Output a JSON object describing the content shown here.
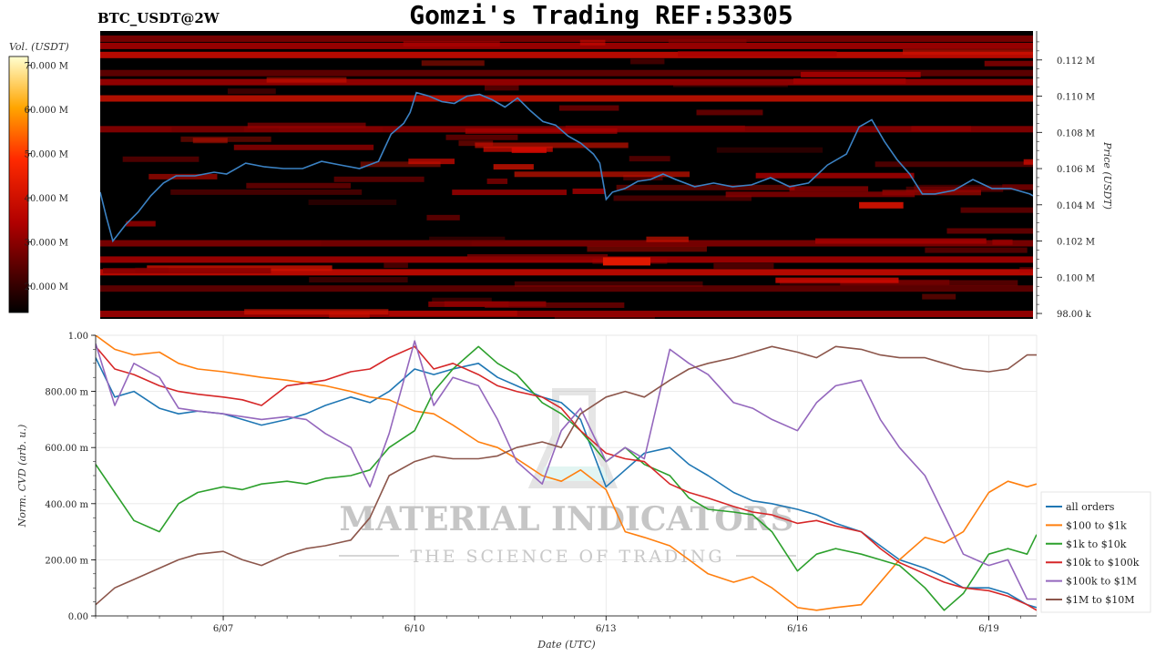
{
  "header": {
    "title": "Gomzi's Trading REF:53305",
    "pair": "BTC_USDT@2W"
  },
  "colors": {
    "all orders": "#1f77b4",
    "$100 to $1k": "#ff7f0e",
    "$1k to $10k": "#2ca02c",
    "$10k to $100k": "#d62728",
    "$100k to $1M": "#9467bd",
    "$1M to $10M": "#8c564b",
    "price_line": "#3b82c4",
    "heatmap_bg": "#000000"
  },
  "watermark": {
    "brand": "MATERIAL INDICATORS",
    "tagline": "THE SCIENCE OF TRADING"
  },
  "chart_data": [
    {
      "type": "heatmap",
      "colorbar": {
        "label": "Vol. (USDT)",
        "ticks": [
          "70.000 M",
          "60.000 M",
          "50.000 M",
          "40.000 M",
          "30.000 M",
          "20.000 M"
        ],
        "tick_values": [
          70,
          60,
          50,
          40,
          30,
          20
        ],
        "range": [
          14,
          72
        ],
        "colormap": "hot"
      },
      "y_axis": {
        "label": "Price (USDT)",
        "ticks": [
          "0.112 M",
          "0.110 M",
          "0.108 M",
          "0.106 M",
          "0.104 M",
          "0.102 M",
          "0.100 M",
          "98.00 k"
        ],
        "tick_values": [
          112000,
          110000,
          108000,
          106000,
          104000,
          102000,
          100000,
          98000
        ],
        "range": [
          97700,
          113600
        ],
        "position": "right"
      },
      "x_range_days": [
        5.0,
        19.75
      ],
      "price_series": {
        "x": [
          5.0,
          5.1,
          5.2,
          5.4,
          5.6,
          5.8,
          6.0,
          6.2,
          6.5,
          6.8,
          7.0,
          7.3,
          7.6,
          7.9,
          8.2,
          8.5,
          8.8,
          9.1,
          9.4,
          9.6,
          9.8,
          9.9,
          10.0,
          10.2,
          10.4,
          10.6,
          10.8,
          11.0,
          11.2,
          11.4,
          11.6,
          11.8,
          12.0,
          12.2,
          12.4,
          12.6,
          12.8,
          12.9,
          13.0,
          13.1,
          13.3,
          13.5,
          13.7,
          13.9,
          14.1,
          14.4,
          14.7,
          15.0,
          15.3,
          15.6,
          15.9,
          16.2,
          16.5,
          16.8,
          17.0,
          17.2,
          17.4,
          17.6,
          17.8,
          18.0,
          18.2,
          18.5,
          18.8,
          19.1,
          19.4,
          19.7,
          19.75
        ],
        "y": [
          104700,
          103300,
          102000,
          102900,
          103600,
          104500,
          105200,
          105600,
          105600,
          105800,
          105700,
          106300,
          106100,
          106000,
          106000,
          106400,
          106200,
          106000,
          106400,
          107900,
          108500,
          109100,
          110200,
          110000,
          109700,
          109600,
          110000,
          110100,
          109800,
          109400,
          109900,
          109200,
          108600,
          108400,
          107800,
          107400,
          106800,
          106300,
          104300,
          104700,
          104900,
          105300,
          105400,
          105700,
          105400,
          105000,
          105200,
          105000,
          105100,
          105500,
          105000,
          105200,
          106200,
          106800,
          108300,
          108700,
          107500,
          106500,
          105700,
          104600,
          104600,
          104800,
          105400,
          104900,
          104900,
          104600,
          104500
        ]
      }
    },
    {
      "type": "line",
      "ylabel": "Norm. CVD (arb. u.)",
      "xlabel": "Date (UTC)",
      "ylim": [
        0,
        1
      ],
      "y_ticks": [
        "0.00",
        "200.00 m",
        "400.00 m",
        "600.00 m",
        "800.00 m",
        "1.00"
      ],
      "y_tick_values": [
        0,
        0.2,
        0.4,
        0.6,
        0.8,
        1.0
      ],
      "x_ticks": [
        "6/07",
        "6/10",
        "6/13",
        "6/16",
        "6/19"
      ],
      "x_tick_values": [
        7,
        10,
        13,
        16,
        19
      ],
      "x_range": [
        5.0,
        19.75
      ],
      "grid": true,
      "legend_position": "right",
      "x": [
        5.0,
        5.3,
        5.6,
        6.0,
        6.3,
        6.6,
        7.0,
        7.3,
        7.6,
        8.0,
        8.3,
        8.6,
        9.0,
        9.3,
        9.6,
        10.0,
        10.3,
        10.6,
        11.0,
        11.3,
        11.6,
        12.0,
        12.3,
        12.6,
        13.0,
        13.3,
        13.6,
        14.0,
        14.3,
        14.6,
        15.0,
        15.3,
        15.6,
        16.0,
        16.3,
        16.6,
        17.0,
        17.3,
        17.6,
        18.0,
        18.3,
        18.6,
        19.0,
        19.3,
        19.6,
        19.75
      ],
      "series": [
        {
          "name": "all orders",
          "values": [
            0.92,
            0.78,
            0.8,
            0.74,
            0.72,
            0.73,
            0.72,
            0.7,
            0.68,
            0.7,
            0.72,
            0.75,
            0.78,
            0.76,
            0.8,
            0.88,
            0.86,
            0.88,
            0.9,
            0.85,
            0.82,
            0.78,
            0.76,
            0.7,
            0.46,
            0.52,
            0.58,
            0.6,
            0.54,
            0.5,
            0.44,
            0.41,
            0.4,
            0.38,
            0.36,
            0.33,
            0.3,
            0.25,
            0.2,
            0.17,
            0.14,
            0.1,
            0.1,
            0.08,
            0.04,
            0.03
          ]
        },
        {
          "name": "$100 to $1k",
          "values": [
            1.0,
            0.95,
            0.93,
            0.94,
            0.9,
            0.88,
            0.87,
            0.86,
            0.85,
            0.84,
            0.83,
            0.82,
            0.8,
            0.78,
            0.77,
            0.73,
            0.72,
            0.68,
            0.62,
            0.6,
            0.56,
            0.5,
            0.48,
            0.52,
            0.45,
            0.3,
            0.28,
            0.25,
            0.2,
            0.15,
            0.12,
            0.14,
            0.1,
            0.03,
            0.02,
            0.03,
            0.04,
            0.12,
            0.2,
            0.28,
            0.26,
            0.3,
            0.44,
            0.48,
            0.46,
            0.47
          ]
        },
        {
          "name": "$1k to $10k",
          "values": [
            0.54,
            0.44,
            0.34,
            0.3,
            0.4,
            0.44,
            0.46,
            0.45,
            0.47,
            0.48,
            0.47,
            0.49,
            0.5,
            0.52,
            0.6,
            0.66,
            0.8,
            0.88,
            0.96,
            0.9,
            0.86,
            0.76,
            0.72,
            0.66,
            0.55,
            0.6,
            0.54,
            0.5,
            0.42,
            0.38,
            0.37,
            0.36,
            0.3,
            0.16,
            0.22,
            0.24,
            0.22,
            0.2,
            0.18,
            0.1,
            0.02,
            0.08,
            0.22,
            0.24,
            0.22,
            0.29
          ]
        },
        {
          "name": "$10k to $100k",
          "values": [
            0.96,
            0.88,
            0.86,
            0.82,
            0.8,
            0.79,
            0.78,
            0.77,
            0.75,
            0.82,
            0.83,
            0.84,
            0.87,
            0.88,
            0.92,
            0.96,
            0.88,
            0.9,
            0.86,
            0.82,
            0.8,
            0.78,
            0.74,
            0.66,
            0.58,
            0.56,
            0.55,
            0.47,
            0.44,
            0.42,
            0.39,
            0.37,
            0.36,
            0.33,
            0.34,
            0.32,
            0.3,
            0.24,
            0.19,
            0.15,
            0.12,
            0.1,
            0.09,
            0.07,
            0.04,
            0.02
          ]
        },
        {
          "name": "$100k to $1M",
          "values": [
            0.97,
            0.75,
            0.9,
            0.85,
            0.74,
            0.73,
            0.72,
            0.71,
            0.7,
            0.71,
            0.7,
            0.65,
            0.6,
            0.46,
            0.65,
            0.98,
            0.75,
            0.85,
            0.82,
            0.7,
            0.55,
            0.47,
            0.66,
            0.74,
            0.55,
            0.6,
            0.56,
            0.95,
            0.9,
            0.86,
            0.76,
            0.74,
            0.7,
            0.66,
            0.76,
            0.82,
            0.84,
            0.7,
            0.6,
            0.5,
            0.36,
            0.22,
            0.18,
            0.2,
            0.06,
            0.06
          ]
        },
        {
          "name": "$1M to $10M",
          "values": [
            0.04,
            0.1,
            0.13,
            0.17,
            0.2,
            0.22,
            0.23,
            0.2,
            0.18,
            0.22,
            0.24,
            0.25,
            0.27,
            0.35,
            0.5,
            0.55,
            0.57,
            0.56,
            0.56,
            0.57,
            0.6,
            0.62,
            0.6,
            0.72,
            0.78,
            0.8,
            0.78,
            0.84,
            0.88,
            0.9,
            0.92,
            0.94,
            0.96,
            0.94,
            0.92,
            0.96,
            0.95,
            0.93,
            0.92,
            0.92,
            0.9,
            0.88,
            0.87,
            0.88,
            0.93,
            0.93
          ]
        }
      ]
    }
  ]
}
